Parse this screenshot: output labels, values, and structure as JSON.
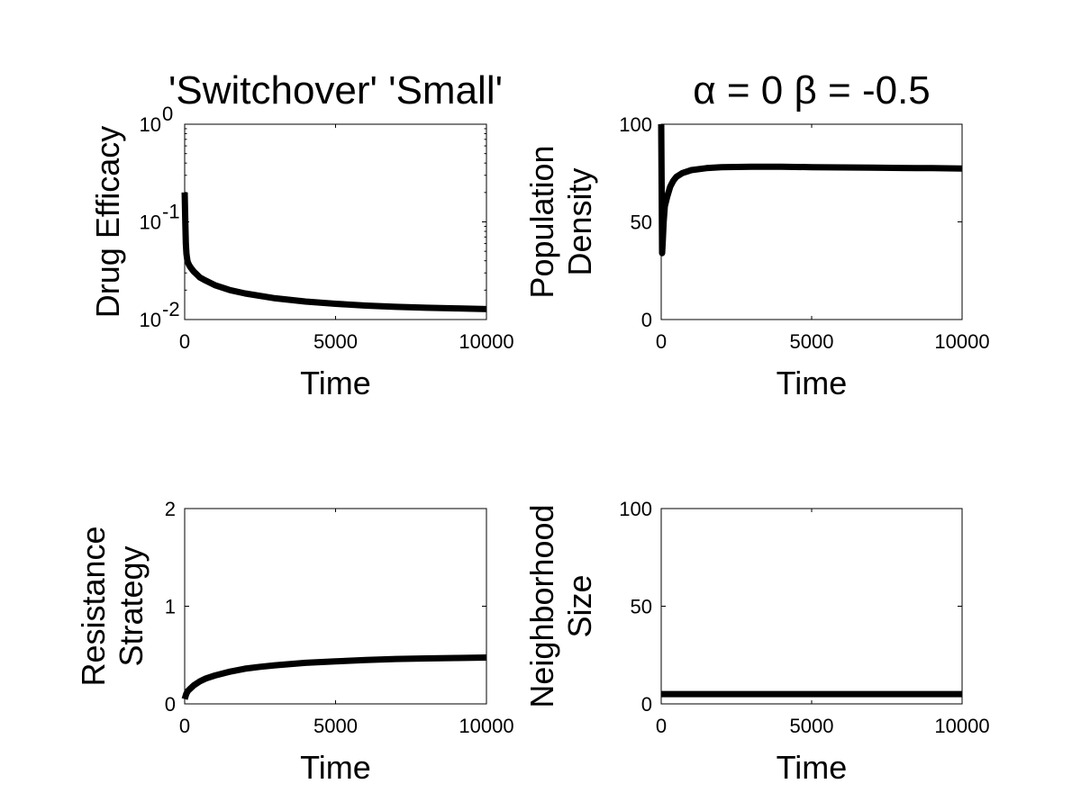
{
  "chart_data": [
    {
      "type": "line",
      "title": "'Switchover' 'Small'",
      "xlabel": "Time",
      "ylabel": "Drug Efficacy",
      "yscale": "log",
      "xlim": [
        0,
        10000
      ],
      "ylim": [
        0.01,
        1
      ],
      "xticks": [
        0,
        5000,
        10000
      ],
      "xtick_labels": [
        "0",
        "5000",
        "10000"
      ],
      "yticks": [
        0.01,
        0.1,
        1
      ],
      "ytick_labels": [
        [
          "10",
          "-2"
        ],
        [
          "10",
          "-1"
        ],
        [
          "10",
          "0"
        ]
      ],
      "grid": false,
      "series": [
        {
          "x": [
            0,
            20,
            40,
            60,
            80,
            100,
            150,
            200,
            300,
            400,
            500,
            700,
            1000,
            1500,
            2000,
            3000,
            4000,
            5000,
            6000,
            7000,
            8000,
            9000,
            10000
          ],
          "values": [
            0.2,
            0.1,
            0.06,
            0.047,
            0.042,
            0.039,
            0.036,
            0.034,
            0.031,
            0.029,
            0.027,
            0.025,
            0.0225,
            0.02,
            0.0185,
            0.0165,
            0.0153,
            0.0145,
            0.0139,
            0.0135,
            0.0132,
            0.013,
            0.0128
          ]
        }
      ]
    },
    {
      "type": "line",
      "title": "α = 0 β = -0.5",
      "xlabel": "Time",
      "ylabel": [
        "Population",
        "Density"
      ],
      "xlim": [
        0,
        10000
      ],
      "ylim": [
        0,
        100
      ],
      "xticks": [
        0,
        5000,
        10000
      ],
      "xtick_labels": [
        "0",
        "5000",
        "10000"
      ],
      "yticks": [
        0,
        50,
        100
      ],
      "ytick_labels": [
        "0",
        "50",
        "100"
      ],
      "grid": false,
      "series": [
        {
          "x": [
            0,
            0,
            10,
            30,
            50,
            80,
            120,
            200,
            300,
            400,
            500,
            700,
            1000,
            1500,
            2000,
            3000,
            4000,
            5000,
            6000,
            7000,
            8000,
            9000,
            10000
          ],
          "values": [
            100,
            100,
            80,
            34,
            40,
            50,
            58,
            63,
            68,
            71,
            73,
            75,
            76.5,
            77.5,
            78,
            78.2,
            78.2,
            78,
            77.9,
            77.8,
            77.6,
            77.5,
            77.3
          ]
        }
      ]
    },
    {
      "type": "line",
      "title": "",
      "xlabel": "Time",
      "ylabel": [
        "Resistance",
        "Strategy"
      ],
      "xlim": [
        0,
        10000
      ],
      "ylim": [
        0,
        2
      ],
      "xticks": [
        0,
        5000,
        10000
      ],
      "xtick_labels": [
        "0",
        "5000",
        "10000"
      ],
      "yticks": [
        0,
        1,
        2
      ],
      "ytick_labels": [
        "0",
        "1",
        "2"
      ],
      "grid": false,
      "series": [
        {
          "x": [
            0,
            50,
            100,
            200,
            300,
            500,
            700,
            1000,
            1500,
            2000,
            2500,
            3000,
            4000,
            5000,
            6000,
            7000,
            8000,
            9000,
            10000
          ],
          "values": [
            0.05,
            0.1,
            0.13,
            0.16,
            0.19,
            0.23,
            0.26,
            0.29,
            0.33,
            0.36,
            0.38,
            0.395,
            0.42,
            0.435,
            0.45,
            0.46,
            0.465,
            0.47,
            0.475
          ]
        }
      ]
    },
    {
      "type": "line",
      "title": "",
      "xlabel": "Time",
      "ylabel": [
        "Neighborhood",
        "Size"
      ],
      "xlim": [
        0,
        10000
      ],
      "ylim": [
        0,
        100
      ],
      "xticks": [
        0,
        5000,
        10000
      ],
      "xtick_labels": [
        "0",
        "5000",
        "10000"
      ],
      "yticks": [
        0,
        50,
        100
      ],
      "ytick_labels": [
        "0",
        "50",
        "100"
      ],
      "grid": false,
      "series": [
        {
          "x": [
            0,
            10000
          ],
          "values": [
            5,
            5
          ]
        }
      ]
    }
  ]
}
